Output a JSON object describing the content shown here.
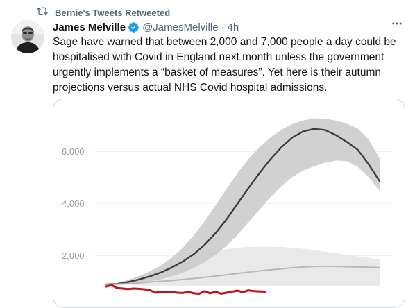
{
  "retweet": {
    "label": "Bernie's Tweets Retweeted",
    "icon": "retweet-icon"
  },
  "author": {
    "name": "James Melville",
    "handle": "@JamesMelville",
    "separator": "·",
    "time": "4h",
    "verified_icon": "verified-badge-icon"
  },
  "more_icon": "more-options-icon",
  "tweet": {
    "text": "Sage have warned that between 2,000 and 7,000 people a day could be hospitalised with Covid in England next month unless the government urgently implements a “basket of measures”. Yet here is their autumn projections versus actual NHS Covid hospital admissions."
  },
  "colors": {
    "text": "#0f1419",
    "muted": "#536471",
    "accent": "#1d9bf0",
    "border": "#cfd9de",
    "upper_band": "#c9c9c9",
    "upper_line": "#3d3d3d",
    "lower_band": "#e7e7e7",
    "lower_line": "#b8b8b8",
    "actual_line": "#c0121c"
  },
  "chart_data": {
    "type": "line",
    "title": "",
    "xlabel": "",
    "ylabel": "",
    "ylim": [
      0,
      7800
    ],
    "y_ticks": [
      2000,
      4000,
      6000
    ],
    "y_tick_labels": [
      "2,000",
      "4,000",
      "6,000"
    ],
    "grid": true,
    "legend": "none",
    "x": [
      0,
      4,
      8,
      12,
      16,
      20,
      24,
      28,
      32,
      36,
      40,
      44,
      48,
      52,
      56,
      60,
      64,
      68,
      72,
      76,
      80,
      84,
      88,
      92,
      96,
      100
    ],
    "series": [
      {
        "values": [
          880,
          900,
          970,
          1070,
          1190,
          1340,
          1530,
          1760,
          2040,
          2400,
          2850,
          3380,
          3980,
          4580,
          5150,
          5680,
          6150,
          6520,
          6760,
          6860,
          6820,
          6620,
          6360,
          6060,
          5500,
          4850
        ],
        "band_low": [
          880,
          880,
          900,
          940,
          1000,
          1080,
          1190,
          1330,
          1510,
          1740,
          2020,
          2360,
          2780,
          3260,
          3740,
          4220,
          4650,
          5000,
          5260,
          5420,
          5560,
          5640,
          5620,
          5400,
          5000,
          4480
        ],
        "band_high": [
          880,
          940,
          1050,
          1200,
          1380,
          1610,
          1910,
          2290,
          2760,
          3310,
          3920,
          4550,
          5160,
          5700,
          6150,
          6520,
          6820,
          7040,
          7180,
          7260,
          7250,
          7180,
          7060,
          6880,
          6460,
          5720
        ]
      },
      {
        "values": [
          880,
          890,
          910,
          940,
          970,
          1000,
          1030,
          1070,
          1110,
          1150,
          1200,
          1250,
          1300,
          1350,
          1400,
          1440,
          1480,
          1520,
          1550,
          1570,
          1580,
          1570,
          1560,
          1550,
          1540,
          1530
        ],
        "band_low": [
          880,
          860,
          850,
          840,
          830,
          830,
          830,
          830,
          830,
          830,
          830,
          830,
          830,
          830,
          830,
          830,
          830,
          830,
          830,
          830,
          830,
          830,
          830,
          830,
          830,
          830
        ],
        "band_high": [
          880,
          940,
          1040,
          1170,
          1320,
          1480,
          1640,
          1790,
          1930,
          2050,
          2150,
          2230,
          2290,
          2320,
          2330,
          2330,
          2320,
          2290,
          2250,
          2200,
          2140,
          2080,
          2020,
          1960,
          1900,
          1840
        ]
      },
      {
        "x": [
          0,
          2,
          4,
          6,
          8,
          10,
          12,
          14,
          16,
          18,
          20,
          22,
          24,
          26,
          28,
          30,
          32,
          34,
          36,
          38,
          40,
          42,
          44,
          46,
          48,
          50,
          52,
          54,
          56,
          58
        ],
        "values": [
          800,
          850,
          740,
          720,
          700,
          720,
          710,
          690,
          660,
          560,
          600,
          580,
          600,
          560,
          550,
          600,
          540,
          520,
          620,
          540,
          600,
          520,
          560,
          600,
          640,
          580,
          650,
          620,
          610,
          600
        ]
      }
    ]
  }
}
